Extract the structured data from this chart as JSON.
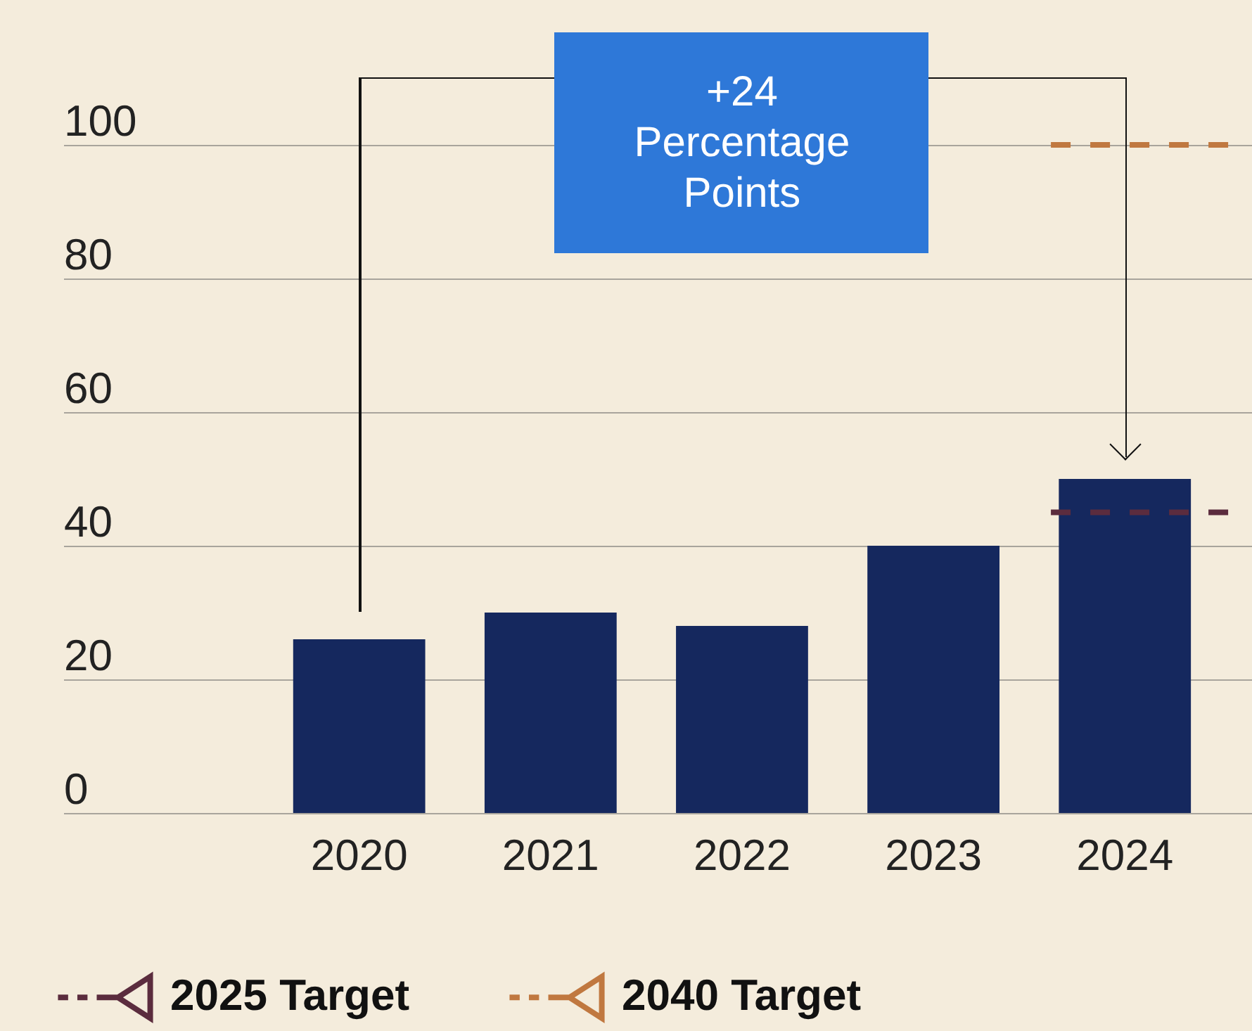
{
  "chart_data": {
    "type": "bar",
    "categories": [
      "2020",
      "2021",
      "2022",
      "2023",
      "2024"
    ],
    "values": [
      26,
      30,
      28,
      40,
      50
    ],
    "color": "#15285e",
    "ylim": [
      0,
      100
    ],
    "yticks": [
      0,
      20,
      40,
      60,
      80,
      100
    ],
    "grid": "y",
    "legend": "bottom left",
    "annotations": [
      "+24 Percentage Points"
    ],
    "ref_lines": [
      {
        "axis": "y",
        "value": 45,
        "label": "2025 Target",
        "color": "#5b2c3e",
        "line_style": "dashed"
      },
      {
        "axis": "y",
        "value": 100,
        "label": "2040 Target",
        "color": "#c07840",
        "line_style": "dashed"
      }
    ]
  }
}
